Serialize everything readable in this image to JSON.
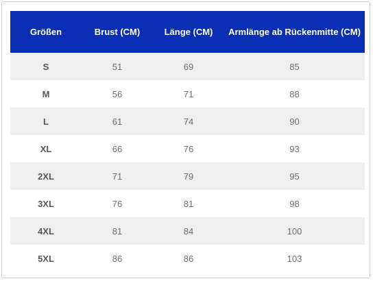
{
  "table": {
    "headers": [
      "Größen",
      "Brust (CM)",
      "Länge (CM)",
      "Armlänge ab Rückenmitte (CM)"
    ],
    "rows": [
      [
        "S",
        "51",
        "69",
        "85"
      ],
      [
        "M",
        "56",
        "71",
        "88"
      ],
      [
        "L",
        "61",
        "74",
        "90"
      ],
      [
        "XL",
        "66",
        "76",
        "93"
      ],
      [
        "2XL",
        "71",
        "79",
        "95"
      ],
      [
        "3XL",
        "76",
        "81",
        "98"
      ],
      [
        "4XL",
        "81",
        "84",
        "100"
      ],
      [
        "5XL",
        "86",
        "86",
        "103"
      ]
    ],
    "colors": {
      "header_bg": "#0a2fb5",
      "header_text": "#ffffff",
      "row_alt_bg": "#efefef",
      "row_bg": "#ffffff",
      "cell_text": "#6d6d6d"
    }
  }
}
